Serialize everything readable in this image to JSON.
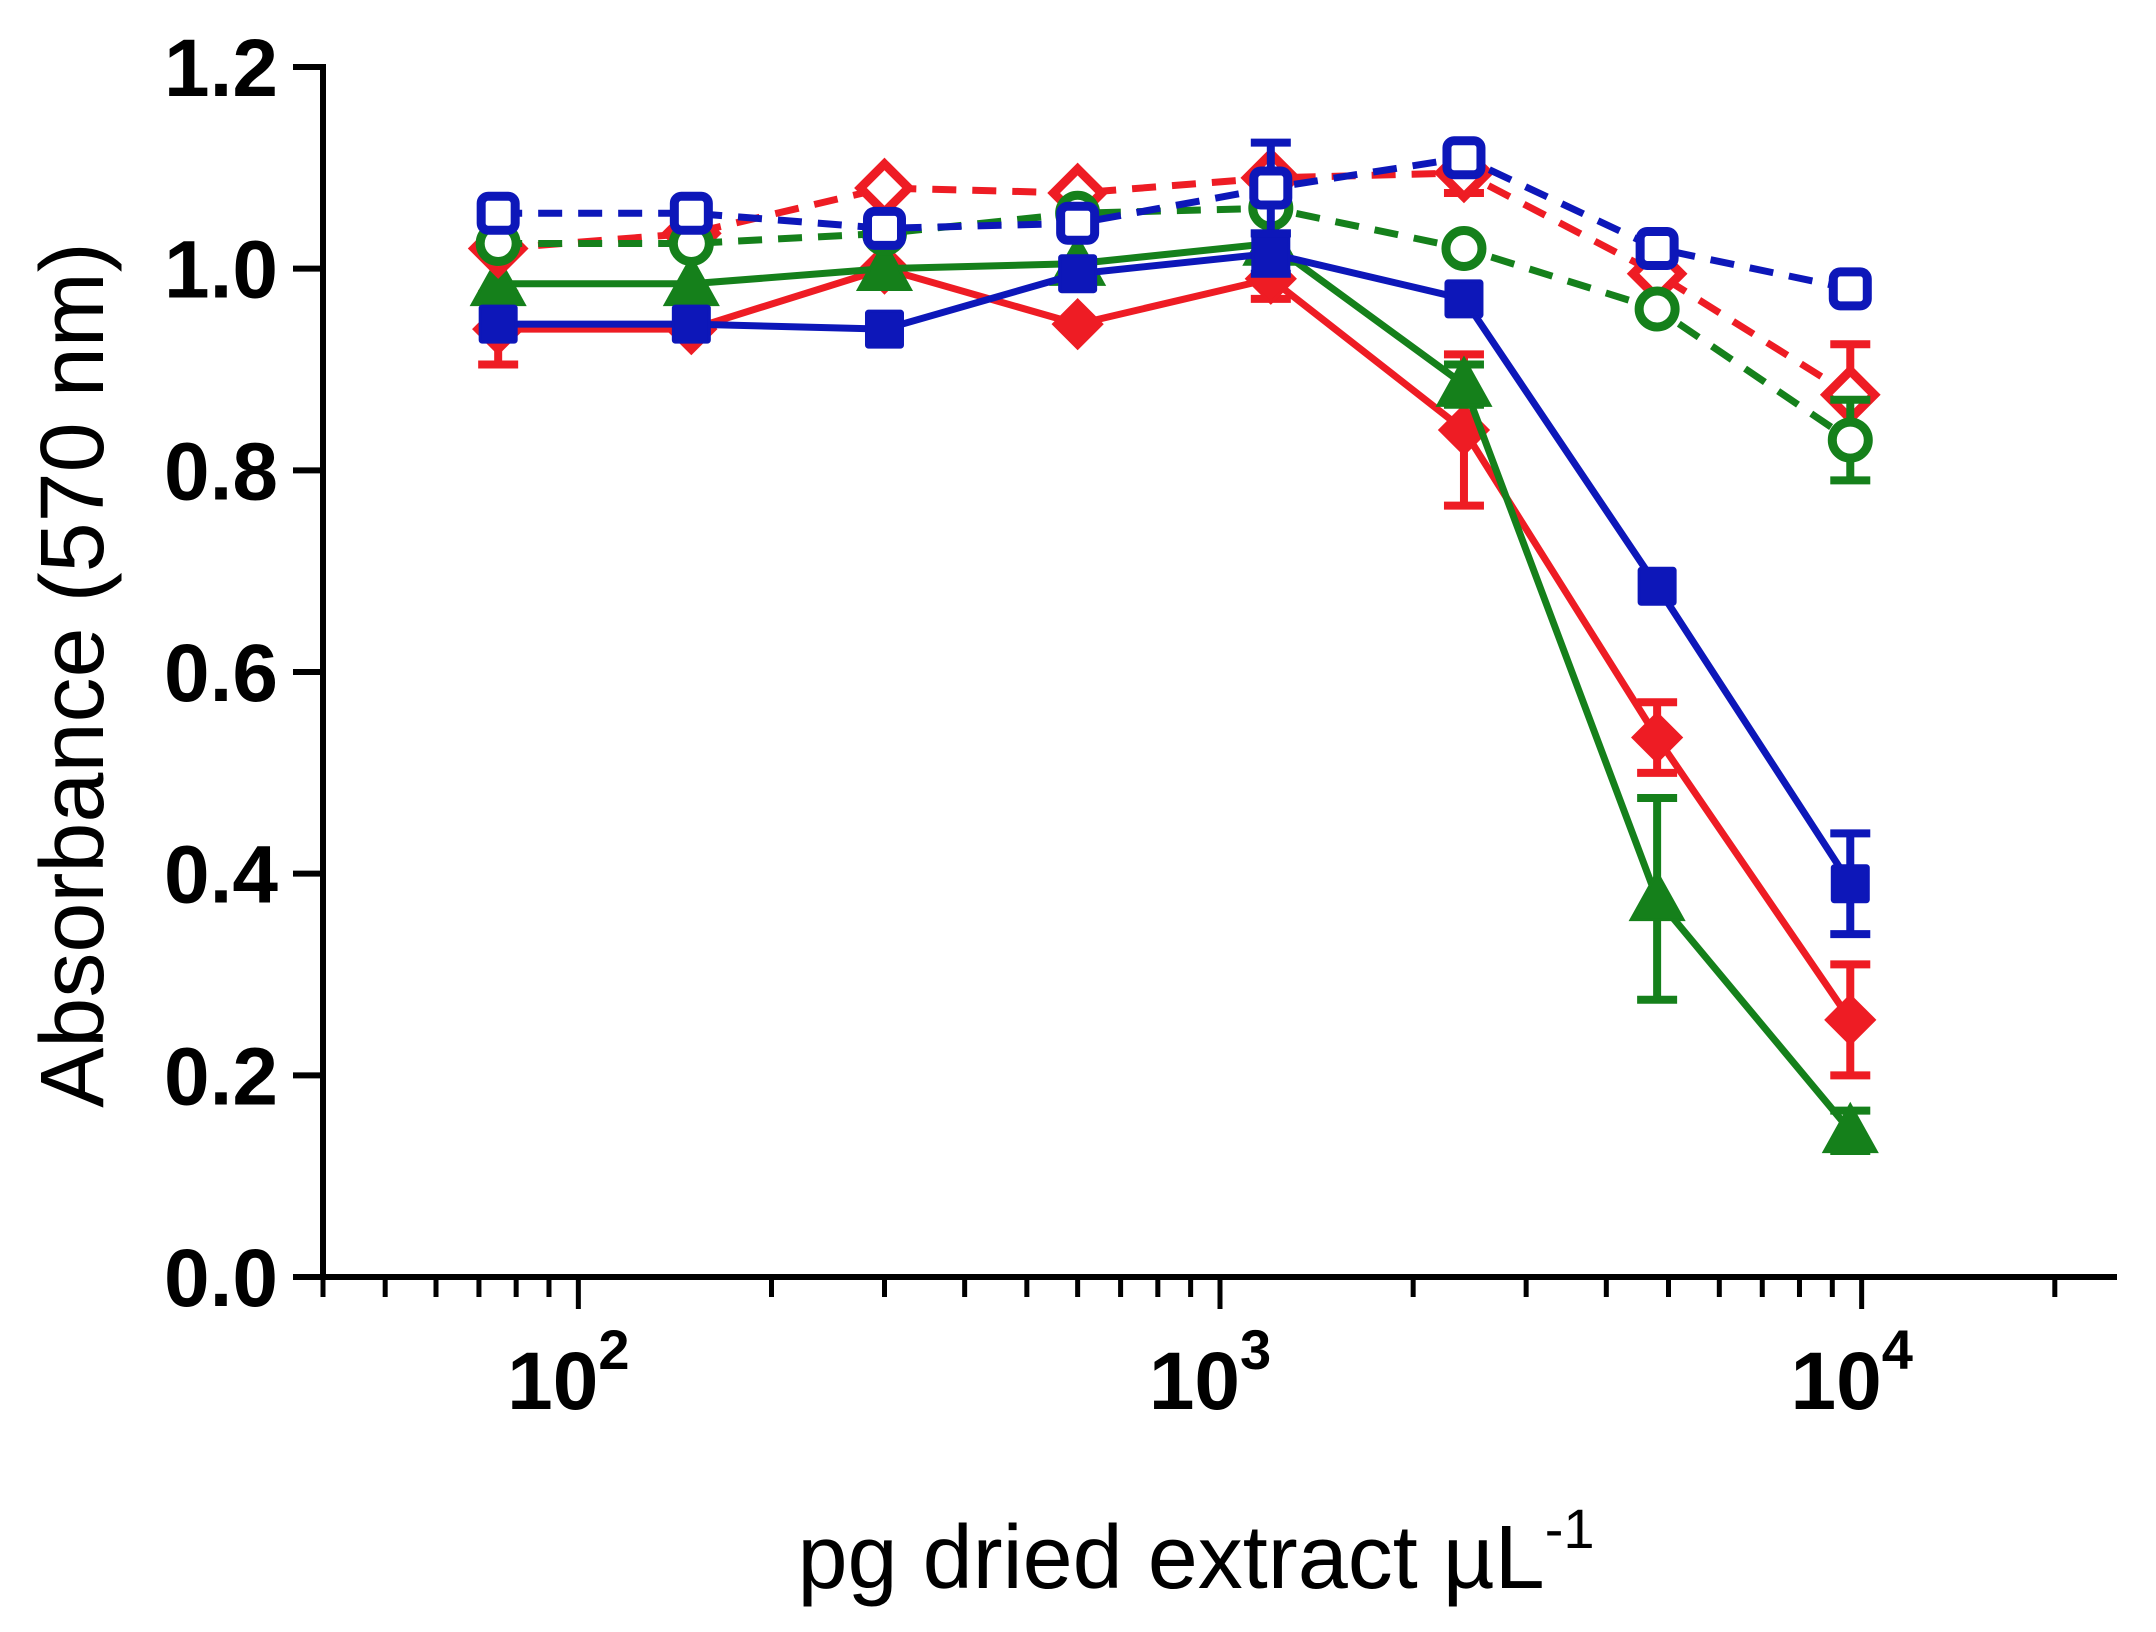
{
  "chart_data": {
    "type": "line",
    "title": "",
    "xlabel": "pg dried extract µL",
    "xlabel_superscript": "-1",
    "ylabel": "Absorbance (570 nm)",
    "xscale": "log",
    "xlim": [
      40,
      25000
    ],
    "ylim": [
      0,
      1.2
    ],
    "grid": false,
    "legend": "none",
    "yticks": [
      0.0,
      0.2,
      0.4,
      0.6,
      0.8,
      1.0,
      1.2
    ],
    "ytick_labels": [
      "0.0",
      "0.2",
      "0.4",
      "0.6",
      "0.8",
      "1.0",
      "1.2"
    ],
    "xticks": [
      {
        "value": 100,
        "base": "10",
        "exp": "2"
      },
      {
        "value": 1000,
        "base": "10",
        "exp": "3"
      },
      {
        "value": 10000,
        "base": "10",
        "exp": "4"
      }
    ],
    "x": [
      75,
      150,
      300,
      600,
      1200,
      2400,
      4800,
      9600
    ],
    "series": [
      {
        "name": "red-solid",
        "color": "#ee1c24",
        "dash": false,
        "marker": "diamond",
        "filled": true,
        "values": [
          0.94,
          0.94,
          1.0,
          0.945,
          0.99,
          0.84,
          0.535,
          0.255
        ],
        "errors": [
          0.035,
          0.0,
          0.0,
          0.0,
          0.02,
          0.075,
          0.035,
          0.055
        ]
      },
      {
        "name": "green-solid",
        "color": "#15801b",
        "dash": false,
        "marker": "triangle",
        "filled": true,
        "values": [
          0.985,
          0.985,
          1.0,
          1.005,
          1.025,
          0.885,
          0.375,
          0.145
        ],
        "errors": [
          0.0,
          0.0,
          0.0,
          0.0,
          0.0,
          0.02,
          0.1,
          0.02
        ]
      },
      {
        "name": "blue-solid",
        "color": "#0d17b9",
        "dash": false,
        "marker": "square",
        "filled": true,
        "values": [
          0.945,
          0.945,
          0.94,
          0.995,
          1.015,
          0.97,
          0.685,
          0.39
        ],
        "errors": [
          0.0,
          0.0,
          0.0,
          0.0,
          0.02,
          0.0,
          0.0,
          0.05
        ]
      },
      {
        "name": "red-dashed",
        "color": "#ee1c24",
        "dash": true,
        "marker": "diamond",
        "filled": false,
        "values": [
          1.02,
          1.035,
          1.08,
          1.075,
          1.09,
          1.095,
          0.995,
          0.875
        ],
        "errors": [
          0.0,
          0.0,
          0.0,
          0.0,
          0.0,
          0.02,
          0.0,
          0.05
        ]
      },
      {
        "name": "green-dashed",
        "color": "#15801b",
        "dash": true,
        "marker": "circle",
        "filled": false,
        "values": [
          1.025,
          1.025,
          1.035,
          1.055,
          1.06,
          1.02,
          0.96,
          0.83
        ],
        "errors": [
          0.0,
          0.0,
          0.0,
          0.0,
          0.0,
          0.0,
          0.0,
          0.04
        ]
      },
      {
        "name": "blue-dashed",
        "color": "#0d17b9",
        "dash": true,
        "marker": "square",
        "filled": false,
        "values": [
          1.055,
          1.055,
          1.04,
          1.045,
          1.08,
          1.11,
          1.02,
          0.98
        ],
        "errors": [
          0.0,
          0.0,
          0.0,
          0.0,
          0.045,
          0.0,
          0.0,
          0.0
        ]
      }
    ]
  }
}
